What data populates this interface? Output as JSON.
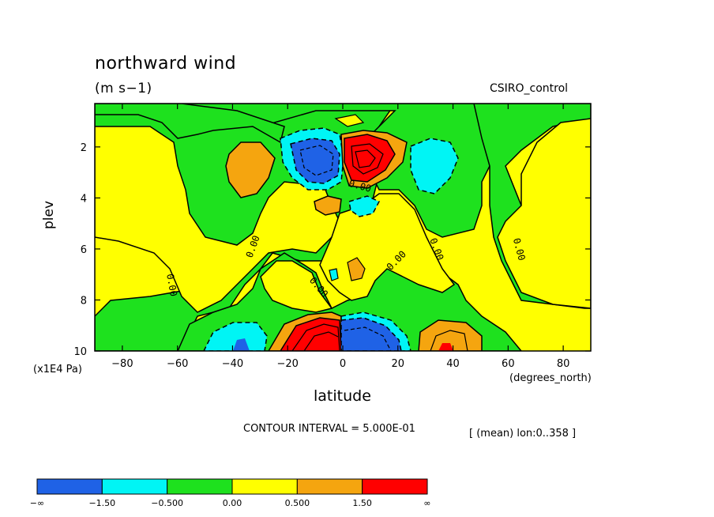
{
  "chart_data": {
    "type": "heatmap",
    "title": "northward wind",
    "units": "(m s−1)",
    "model_label": "CSIRO_control",
    "xlabel": "latitude",
    "x_unit": "(degrees_north)",
    "ylabel": "plev",
    "y_unit": "(x1E4 Pa)",
    "xlim": [
      -90,
      90
    ],
    "ylim": [
      10,
      0.3
    ],
    "x_ticks": [
      -80,
      -60,
      -40,
      -20,
      0,
      20,
      40,
      60,
      80
    ],
    "y_ticks": [
      2,
      4,
      6,
      8,
      10
    ],
    "contour_interval_label": "CONTOUR INTERVAL = 5.000E-01",
    "mean_label": "[ (mean) lon:0..358 ]",
    "contour_labels": [
      "0.00",
      "0.00",
      "0.00",
      "0.00",
      "0.00",
      "0.00",
      "0.00"
    ],
    "colorbar": {
      "labels": [
        "−∞",
        "−1.50",
        "−0.500",
        "0.00",
        "0.500",
        "1.50",
        "∞"
      ],
      "colors": [
        "#1f62e6",
        "#00f5f5",
        "#1ee11e",
        "#ffff00",
        "#f5a50f",
        "#ff0000"
      ]
    },
    "regions": [
      {
        "level": "-1.5 to -0.5",
        "x": [
          -20,
          0
        ],
        "y": [
          1.2,
          3.5
        ]
      },
      {
        "level": "< -1.5",
        "x": [
          -15,
          -1
        ],
        "y": [
          1.7,
          3.1
        ]
      },
      {
        "level": "> 1.5",
        "x": [
          0,
          14
        ],
        "y": [
          1.5,
          3.3
        ]
      },
      {
        "level": "0.5 to 1.5",
        "x": [
          -45,
          -25
        ],
        "y": [
          1.8,
          3.8
        ]
      },
      {
        "level": "-1.5 to -0.5",
        "x": [
          28,
          45
        ],
        "y": [
          1.5,
          3.3
        ]
      },
      {
        "level": "> 1.5",
        "x": [
          -20,
          0
        ],
        "y": [
          8.4,
          10
        ]
      },
      {
        "level": "< -1.5",
        "x": [
          0,
          22
        ],
        "y": [
          8.4,
          10
        ]
      },
      {
        "level": "0.5 to 1.5",
        "x": [
          28,
          50
        ],
        "y": [
          8.8,
          10
        ]
      },
      {
        "level": "-1.5 to -0.5",
        "x": [
          -50,
          -28
        ],
        "y": [
          8.8,
          10
        ]
      }
    ]
  }
}
